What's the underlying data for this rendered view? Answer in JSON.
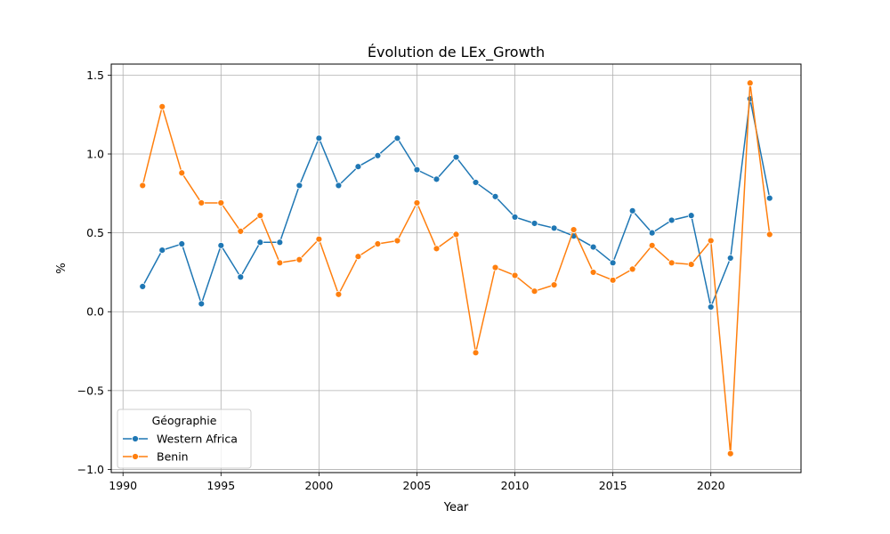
{
  "chart_data": {
    "type": "line",
    "title": "Évolution de LEx_Growth",
    "xlabel": "Year",
    "ylabel": "%",
    "xlim": [
      1989.4,
      2024.6
    ],
    "ylim": [
      -1.02,
      1.57
    ],
    "x_ticks": [
      1990,
      1995,
      2000,
      2005,
      2010,
      2015,
      2020
    ],
    "x_tick_labels": [
      "1990",
      "1995",
      "2000",
      "2005",
      "2010",
      "2015",
      "2020"
    ],
    "y_ticks": [
      -1.0,
      -0.5,
      0.0,
      0.5,
      1.0,
      1.5
    ],
    "y_tick_labels": [
      "−1.0",
      "−0.5",
      "0.0",
      "0.5",
      "1.0",
      "1.5"
    ],
    "grid": true,
    "legend": {
      "title": "Géographie",
      "placement": "lower-left"
    },
    "x": [
      1991,
      1992,
      1993,
      1994,
      1995,
      1996,
      1997,
      1998,
      1999,
      2000,
      2001,
      2002,
      2003,
      2004,
      2005,
      2006,
      2007,
      2008,
      2009,
      2010,
      2011,
      2012,
      2013,
      2014,
      2015,
      2016,
      2017,
      2018,
      2019,
      2020,
      2021,
      2022,
      2023
    ],
    "series": [
      {
        "name": "Western Africa",
        "color": "#1f77b4",
        "values": [
          0.16,
          0.39,
          0.43,
          0.05,
          0.42,
          0.22,
          0.44,
          0.44,
          0.8,
          1.1,
          0.8,
          0.92,
          0.99,
          1.1,
          0.9,
          0.84,
          0.98,
          0.82,
          0.73,
          0.6,
          0.56,
          0.53,
          0.48,
          0.41,
          0.31,
          0.64,
          0.5,
          0.58,
          0.61,
          0.03,
          0.34,
          1.35,
          0.72
        ]
      },
      {
        "name": "Benin",
        "color": "#ff7f0e",
        "values": [
          0.8,
          1.3,
          0.88,
          0.69,
          0.69,
          0.51,
          0.61,
          0.31,
          0.33,
          0.46,
          0.11,
          0.35,
          0.43,
          0.45,
          0.69,
          0.4,
          0.49,
          -0.26,
          0.28,
          0.23,
          0.13,
          0.17,
          0.52,
          0.25,
          0.2,
          0.27,
          0.42,
          0.31,
          0.3,
          0.45,
          -0.9,
          1.45,
          0.49
        ]
      }
    ]
  }
}
